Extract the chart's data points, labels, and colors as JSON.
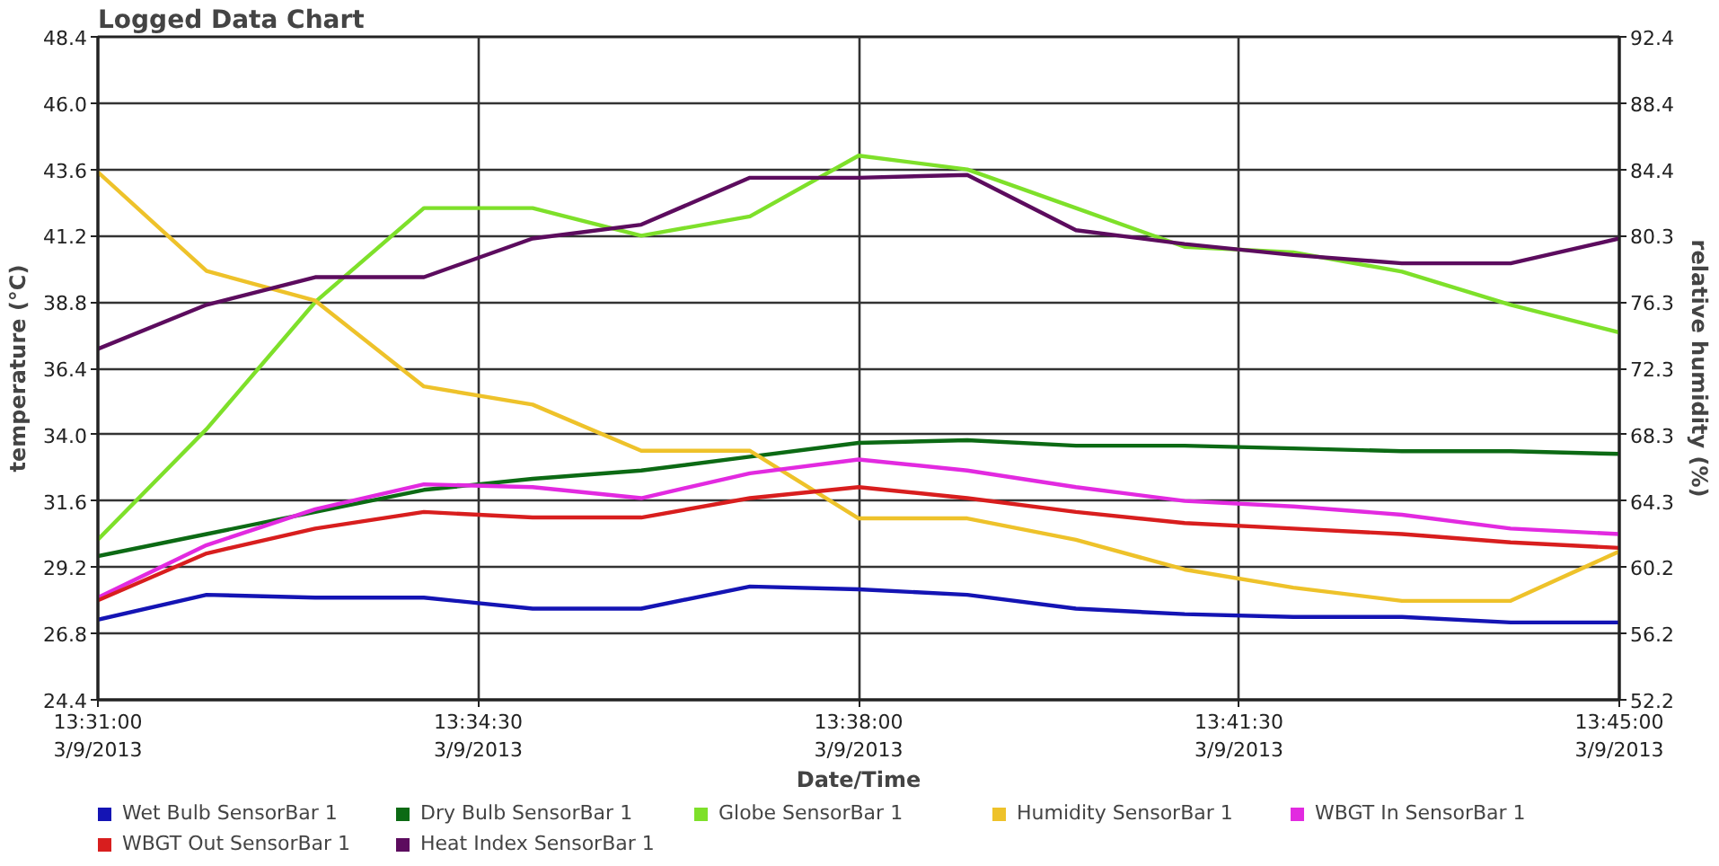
{
  "chart_data": {
    "type": "line",
    "title": "Logged Data Chart",
    "xlabel": "Date/Time",
    "ylabel": "temperature (°C)",
    "y2label": "relative humidity (%)",
    "x": [
      "2013-03-09T13:31",
      "2013-03-09T13:32",
      "2013-03-09T13:33",
      "2013-03-09T13:34",
      "2013-03-09T13:35",
      "2013-03-09T13:36",
      "2013-03-09T13:37",
      "2013-03-09T13:38",
      "2013-03-09T13:39",
      "2013-03-09T13:40",
      "2013-03-09T13:41",
      "2013-03-09T13:42",
      "2013-03-09T13:43",
      "2013-03-09T13:44",
      "2013-03-09T13:45"
    ],
    "xlim": [
      "2013-03-09T13:31",
      "2013-03-09T13:45"
    ],
    "xticks": [
      {
        "value": "2013-03-09T13:31:00",
        "label": "13:31:00\n3/9/2013"
      },
      {
        "value": "2013-03-09T13:34:30",
        "label": "13:34:30\n3/9/2013"
      },
      {
        "value": "2013-03-09T13:38:00",
        "label": "13:38:00\n3/9/2013"
      },
      {
        "value": "2013-03-09T13:41:30",
        "label": "13:41:30\n3/9/2013"
      },
      {
        "value": "2013-03-09T13:45:00",
        "label": "13:45:00\n3/9/2013"
      }
    ],
    "ylim": [
      24.4,
      48.4
    ],
    "yticks": [
      24.4,
      26.8,
      29.2,
      31.6,
      {
        "value": 34,
        "label": "34.0"
      },
      36.4,
      38.8,
      41.2,
      43.6,
      {
        "value": 46,
        "label": "46.0"
      },
      48.4
    ],
    "y2lim": [
      52.2,
      92.4
    ],
    "y2ticks": [
      52.2,
      {
        "value": 56.22,
        "label": "56.2"
      },
      {
        "value": 60.24,
        "label": "60.2"
      },
      {
        "value": 64.26,
        "label": "64.3"
      },
      {
        "value": 68.28,
        "label": "68.3"
      },
      72.3,
      {
        "value": 76.32,
        "label": "76.3"
      },
      {
        "value": 80.34,
        "label": "80.3"
      },
      {
        "value": 84.36,
        "label": "84.4"
      },
      {
        "value": 88.38,
        "label": "88.4"
      },
      92.4
    ],
    "grid": true,
    "legend": "bottom",
    "series": [
      {
        "name": "Wet Bulb SensorBar 1",
        "color": "#1414b4",
        "values": [
          27.3,
          28.2,
          28.1,
          28.1,
          27.7,
          27.7,
          28.5,
          28.4,
          28.2,
          27.7,
          27.5,
          27.4,
          27.4,
          27.2,
          27.2
        ]
      },
      {
        "name": "Dry Bulb SensorBar 1",
        "color": "#0c6a14",
        "values": [
          29.6,
          30.4,
          31.2,
          32.0,
          32.4,
          32.7,
          33.2,
          33.7,
          33.8,
          33.6,
          33.6,
          33.5,
          33.4,
          33.4,
          33.3
        ]
      },
      {
        "name": "Globe SensorBar 1",
        "color": "#7ee02a",
        "values": [
          30.2,
          34.2,
          38.8,
          42.2,
          42.2,
          41.2,
          41.9,
          44.1,
          43.6,
          42.2,
          40.8,
          40.6,
          39.9,
          38.7,
          37.7
        ]
      },
      {
        "name": "Humidity SensorBar 1",
        "color": "#eec22a",
        "axis": "y2",
        "values": [
          84.2,
          78.2,
          76.4,
          71.2,
          70.1,
          67.3,
          67.3,
          63.2,
          63.2,
          61.9,
          60.1,
          59.0,
          58.2,
          58.2,
          61.2
        ]
      },
      {
        "name": "WBGT In SensorBar 1",
        "color": "#e22ae0",
        "values": [
          28.1,
          30.0,
          31.3,
          32.2,
          32.1,
          31.7,
          32.6,
          33.1,
          32.7,
          32.1,
          31.6,
          31.4,
          31.1,
          30.6,
          30.4
        ]
      },
      {
        "name": "WBGT Out SensorBar 1",
        "color": "#d81e1e",
        "values": [
          28.0,
          29.7,
          30.6,
          31.2,
          31.0,
          31.0,
          31.7,
          32.1,
          31.7,
          31.2,
          30.8,
          30.6,
          30.4,
          30.1,
          29.9
        ]
      },
      {
        "name": "Heat Index SensorBar 1",
        "color": "#5c0c5e",
        "values": [
          37.1,
          38.7,
          39.7,
          39.7,
          41.1,
          41.6,
          43.3,
          43.3,
          43.4,
          41.4,
          40.9,
          40.5,
          40.2,
          40.2,
          41.1
        ]
      }
    ]
  }
}
